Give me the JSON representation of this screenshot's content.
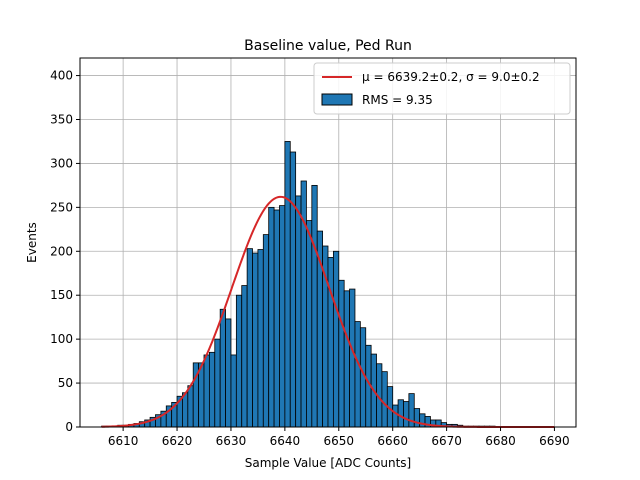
{
  "chart_data": {
    "type": "bar",
    "title": "Baseline value, Ped Run",
    "xlabel": "Sample Value [ADC Counts]",
    "ylabel": "Events",
    "xlim": [
      6602,
      6694
    ],
    "ylim": [
      0,
      420
    ],
    "xticks": [
      "6610",
      "6620",
      "6630",
      "6640",
      "6650",
      "6660",
      "6670",
      "6680",
      "6690"
    ],
    "xtick_values": [
      6610,
      6620,
      6630,
      6640,
      6650,
      6660,
      6670,
      6680,
      6690
    ],
    "yticks": [
      "0",
      "50",
      "100",
      "150",
      "200",
      "250",
      "300",
      "350",
      "400"
    ],
    "ytick_values": [
      0,
      50,
      100,
      150,
      200,
      250,
      300,
      350,
      400
    ],
    "grid": true,
    "legend_position": "top-right",
    "bar_color": "#1f77b4",
    "fit_color": "#d62728",
    "bins": {
      "start": 6606,
      "width": 1,
      "values": [
        1,
        1,
        1,
        2,
        2,
        3,
        4,
        6,
        8,
        11,
        14,
        18,
        24,
        28,
        35,
        39,
        47,
        73,
        73,
        82,
        85,
        100,
        134,
        123,
        82,
        150,
        161,
        203,
        198,
        202,
        219,
        250,
        247,
        252,
        325,
        313,
        263,
        280,
        235,
        275,
        223,
        206,
        193,
        200,
        167,
        155,
        157,
        120,
        113,
        93,
        83,
        72,
        63,
        46,
        25,
        31,
        29,
        38,
        21,
        15,
        12,
        8,
        8,
        5,
        3,
        3,
        2,
        1,
        1,
        1,
        1,
        1,
        1,
        0,
        0,
        0,
        0,
        0,
        0,
        0,
        0,
        0,
        0,
        0
      ]
    },
    "fit": {
      "mu": 6639.2,
      "sigma": 9.0,
      "amplitude": 262,
      "x_range": [
        6606,
        6690
      ]
    },
    "legend": [
      {
        "kind": "line",
        "label": "μ = 6639.2±0.2, σ = 9.0±0.2"
      },
      {
        "kind": "patch",
        "label": "RMS = 9.35"
      }
    ]
  }
}
